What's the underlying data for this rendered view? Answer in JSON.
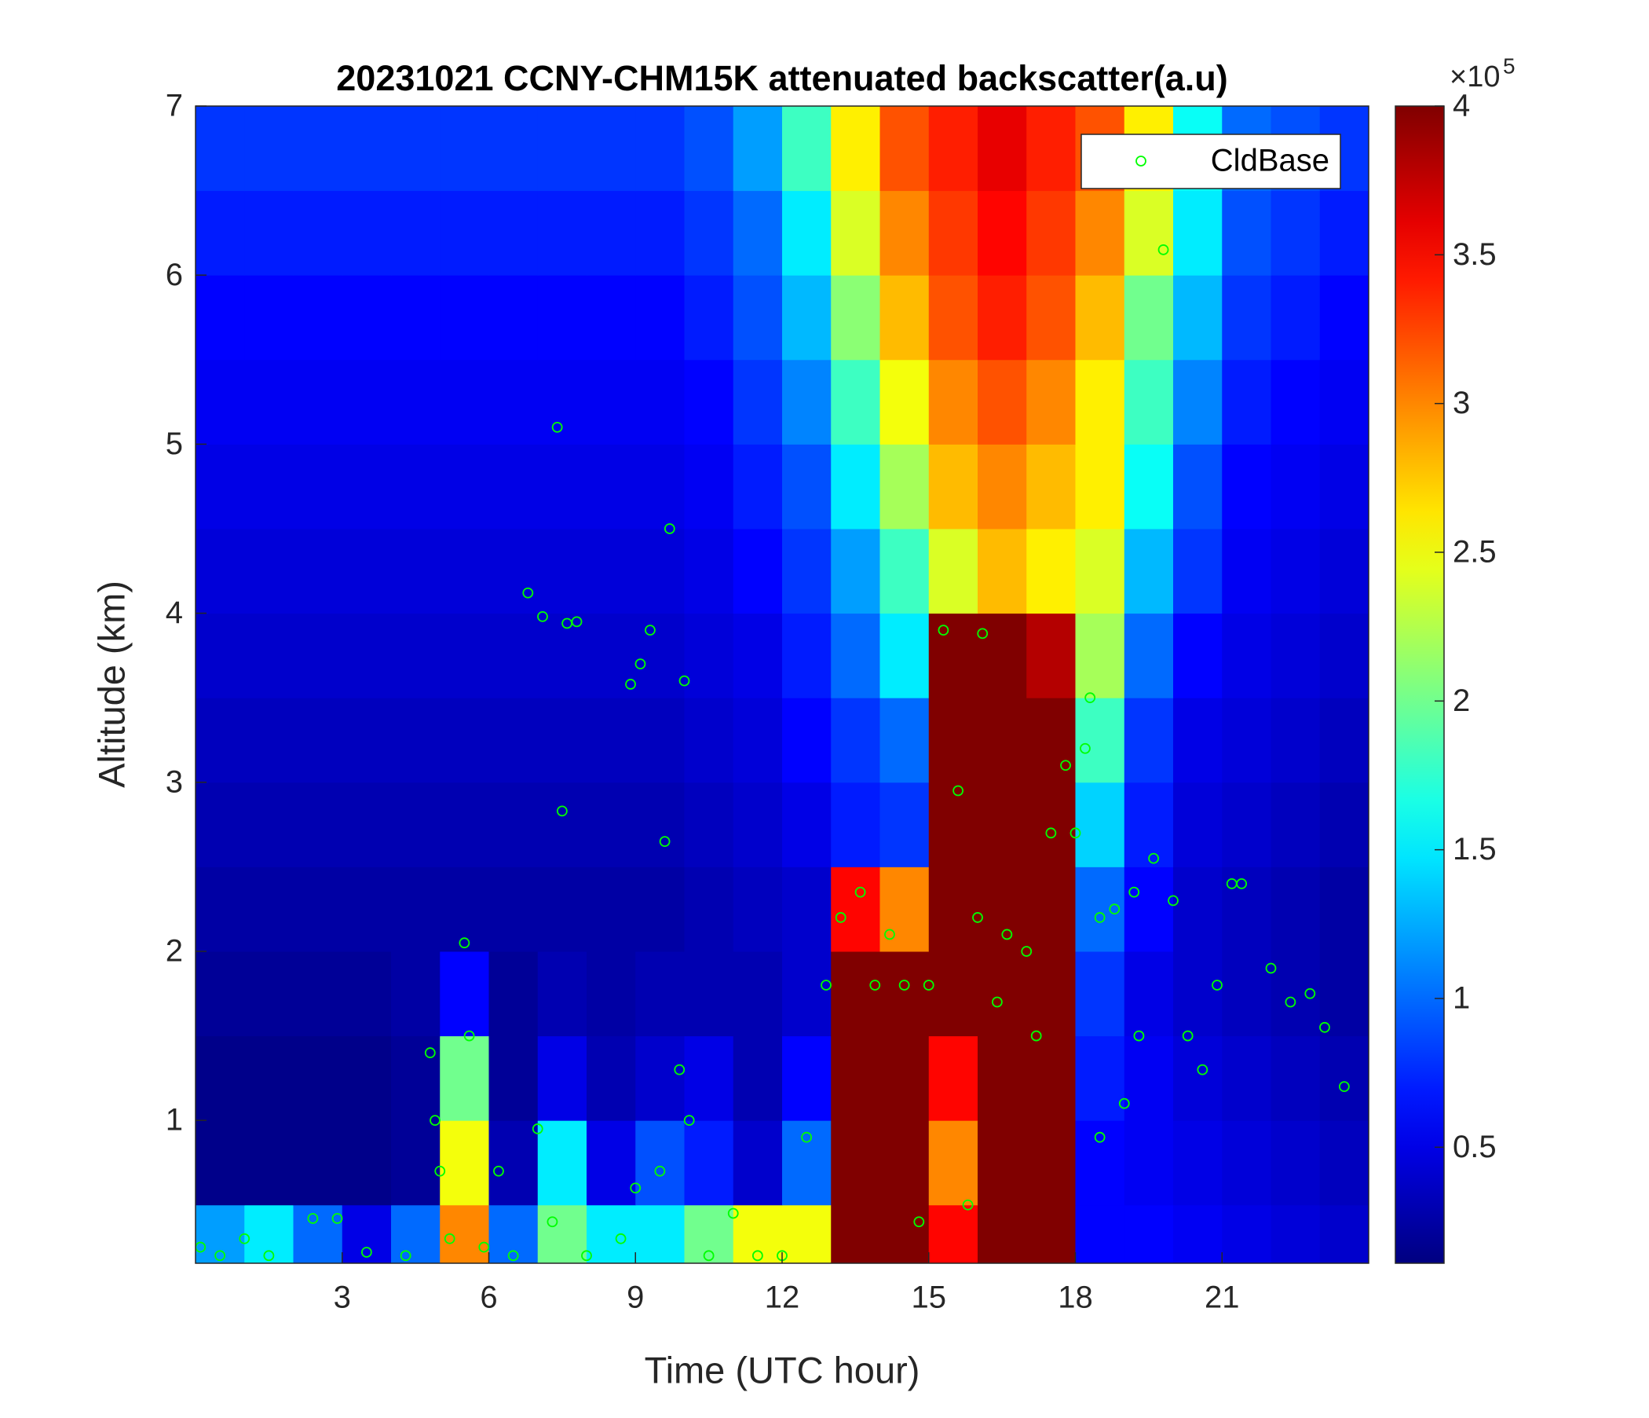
{
  "chart_data": {
    "type": "heatmap",
    "title": "20231021 CCNY-CHM15K attenuated backscatter(a.u)",
    "x_label": "Time (UTC hour)",
    "y_label": "Altitude (km)",
    "xlim": [
      0,
      24
    ],
    "xticks": [
      3,
      6,
      9,
      12,
      15,
      18,
      21
    ],
    "ylim": [
      0.155,
      7
    ],
    "yticks": [
      1,
      2,
      3,
      4,
      5,
      6,
      7
    ],
    "colormap": "jet",
    "clim": [
      0.11,
      4
    ],
    "colorbar_ticks": [
      0.5,
      1,
      1.5,
      2,
      2.5,
      3,
      3.5,
      4
    ],
    "colorbar_multiplier": {
      "base": "×10",
      "exponent": "5"
    },
    "x": [
      0.5,
      1.5,
      2.5,
      3.5,
      4.5,
      5.5,
      6.5,
      7.5,
      8.5,
      9.5,
      10.5,
      11.5,
      12.5,
      13.5,
      14.5,
      15.5,
      16.5,
      17.5,
      18.5,
      19.5,
      20.5,
      21.5,
      22.5,
      23.5
    ],
    "y": [
      0.25,
      0.75,
      1.25,
      1.75,
      2.25,
      2.75,
      3.25,
      3.75,
      4.25,
      4.75,
      5.25,
      5.75,
      6.25,
      6.75
    ],
    "z": [
      [
        1.2,
        1.5,
        1.0,
        0.5,
        1.0,
        3.0,
        1.0,
        2.0,
        1.5,
        1.5,
        2.0,
        2.5,
        2.5,
        4,
        4,
        3.5,
        4,
        4,
        0.6,
        0.6,
        0.55,
        0.5,
        0.45,
        0.4
      ],
      [
        0.15,
        0.15,
        0.15,
        0.15,
        0.2,
        2.5,
        0.3,
        1.5,
        0.5,
        0.9,
        0.7,
        0.4,
        1.0,
        4,
        4,
        3.0,
        4,
        4,
        0.6,
        0.55,
        0.5,
        0.45,
        0.4,
        0.35
      ],
      [
        0.15,
        0.15,
        0.15,
        0.15,
        0.2,
        2.0,
        0.2,
        0.5,
        0.3,
        0.4,
        0.5,
        0.3,
        0.6,
        4,
        4,
        3.5,
        4,
        4,
        0.7,
        0.55,
        0.45,
        0.4,
        0.35,
        0.3
      ],
      [
        0.2,
        0.2,
        0.2,
        0.2,
        0.25,
        0.6,
        0.2,
        0.3,
        0.25,
        0.3,
        0.3,
        0.3,
        0.4,
        4,
        4,
        4,
        4,
        4,
        0.8,
        0.5,
        0.4,
        0.35,
        0.3,
        0.25
      ],
      [
        0.25,
        0.25,
        0.25,
        0.25,
        0.25,
        0.25,
        0.25,
        0.25,
        0.25,
        0.25,
        0.3,
        0.35,
        0.4,
        3.5,
        3.0,
        4,
        4,
        4,
        1.0,
        0.6,
        0.4,
        0.35,
        0.3,
        0.25
      ],
      [
        0.3,
        0.3,
        0.3,
        0.3,
        0.3,
        0.3,
        0.3,
        0.3,
        0.3,
        0.3,
        0.35,
        0.4,
        0.5,
        0.7,
        0.8,
        4,
        4,
        4,
        1.4,
        0.7,
        0.45,
        0.4,
        0.35,
        0.3
      ],
      [
        0.35,
        0.35,
        0.35,
        0.35,
        0.35,
        0.35,
        0.35,
        0.35,
        0.35,
        0.35,
        0.4,
        0.45,
        0.6,
        0.8,
        1.0,
        4,
        4,
        4,
        1.8,
        0.8,
        0.5,
        0.45,
        0.4,
        0.35
      ],
      [
        0.4,
        0.4,
        0.4,
        0.4,
        0.4,
        0.4,
        0.4,
        0.4,
        0.4,
        0.4,
        0.45,
        0.5,
        0.7,
        1.0,
        1.5,
        4,
        4,
        3.8,
        2.2,
        1.0,
        0.6,
        0.5,
        0.45,
        0.4
      ],
      [
        0.45,
        0.45,
        0.45,
        0.45,
        0.45,
        0.45,
        0.45,
        0.45,
        0.45,
        0.45,
        0.5,
        0.6,
        0.8,
        1.2,
        1.8,
        2.4,
        2.8,
        2.6,
        2.4,
        1.3,
        0.8,
        0.55,
        0.5,
        0.45
      ],
      [
        0.5,
        0.5,
        0.5,
        0.5,
        0.5,
        0.5,
        0.5,
        0.5,
        0.5,
        0.5,
        0.55,
        0.7,
        0.9,
        1.5,
        2.2,
        2.8,
        3.0,
        2.8,
        2.6,
        1.6,
        0.9,
        0.6,
        0.55,
        0.5
      ],
      [
        0.55,
        0.55,
        0.55,
        0.55,
        0.55,
        0.55,
        0.55,
        0.55,
        0.55,
        0.55,
        0.6,
        0.8,
        1.1,
        1.8,
        2.5,
        3.0,
        3.2,
        3.0,
        2.6,
        1.8,
        1.1,
        0.7,
        0.6,
        0.55
      ],
      [
        0.6,
        0.6,
        0.6,
        0.6,
        0.6,
        0.6,
        0.6,
        0.6,
        0.6,
        0.6,
        0.7,
        0.9,
        1.3,
        2.1,
        2.8,
        3.2,
        3.4,
        3.2,
        2.8,
        2.0,
        1.3,
        0.8,
        0.7,
        0.6
      ],
      [
        0.7,
        0.7,
        0.7,
        0.7,
        0.7,
        0.7,
        0.7,
        0.7,
        0.7,
        0.7,
        0.8,
        1.0,
        1.5,
        2.4,
        3.0,
        3.3,
        3.5,
        3.3,
        3.0,
        2.4,
        1.5,
        0.9,
        0.8,
        0.7
      ],
      [
        0.8,
        0.8,
        0.8,
        0.8,
        0.8,
        0.8,
        0.8,
        0.8,
        0.8,
        0.8,
        0.9,
        1.2,
        1.8,
        2.6,
        3.2,
        3.4,
        3.6,
        3.4,
        3.2,
        2.6,
        1.6,
        1.0,
        0.9,
        0.8
      ]
    ],
    "legend_position": "upper right",
    "scatter": {
      "name": "CldBase",
      "color": "#00ff00",
      "x": [
        0.1,
        0.5,
        1,
        1.5,
        2.4,
        2.9,
        3.5,
        4.3,
        4.8,
        4.9,
        5.0,
        5.2,
        5.5,
        5.6,
        5.9,
        6.2,
        6.5,
        6.8,
        7.0,
        7.1,
        7.3,
        7.4,
        7.5,
        7.6,
        7.8,
        8.0,
        8.7,
        8.9,
        9.0,
        9.1,
        9.3,
        9.5,
        9.6,
        9.7,
        9.9,
        10.0,
        10.1,
        10.5,
        11,
        11.5,
        12,
        12.5,
        12.9,
        13.2,
        13.6,
        13.9,
        14.2,
        14.5,
        14.8,
        15,
        15.3,
        15.6,
        15.8,
        16.0,
        16.1,
        16.4,
        16.6,
        17.0,
        17.2,
        17.5,
        17.8,
        18.0,
        18.2,
        18.3,
        18.5,
        18.8,
        19.2,
        19.6,
        19.8,
        19.3,
        19.0,
        18.5,
        20.0,
        20.3,
        20.6,
        20.9,
        21.2,
        21.4,
        22.0,
        22.4,
        22.8,
        23.1,
        23.5
      ],
      "y": [
        0.25,
        0.2,
        0.3,
        0.2,
        0.42,
        0.42,
        0.22,
        0.2,
        1.4,
        1.0,
        0.7,
        0.3,
        2.05,
        1.5,
        0.25,
        0.7,
        0.2,
        4.12,
        0.95,
        3.98,
        0.4,
        5.1,
        2.83,
        3.94,
        3.95,
        0.2,
        0.3,
        3.58,
        0.6,
        3.7,
        3.9,
        0.7,
        2.65,
        4.5,
        1.3,
        3.6,
        1.0,
        0.2,
        0.45,
        0.2,
        0.2,
        0.9,
        1.8,
        2.2,
        2.35,
        1.8,
        2.1,
        1.8,
        0.4,
        1.8,
        3.9,
        2.95,
        0.5,
        2.2,
        3.88,
        1.7,
        2.1,
        2.0,
        1.5,
        2.7,
        3.1,
        2.7,
        3.2,
        3.5,
        2.2,
        2.25,
        2.35,
        2.55,
        6.15,
        1.5,
        1.1,
        0.9,
        2.3,
        1.5,
        1.3,
        1.8,
        2.4,
        2.4,
        1.9,
        1.7,
        1.75,
        1.55,
        1.2
      ]
    }
  }
}
